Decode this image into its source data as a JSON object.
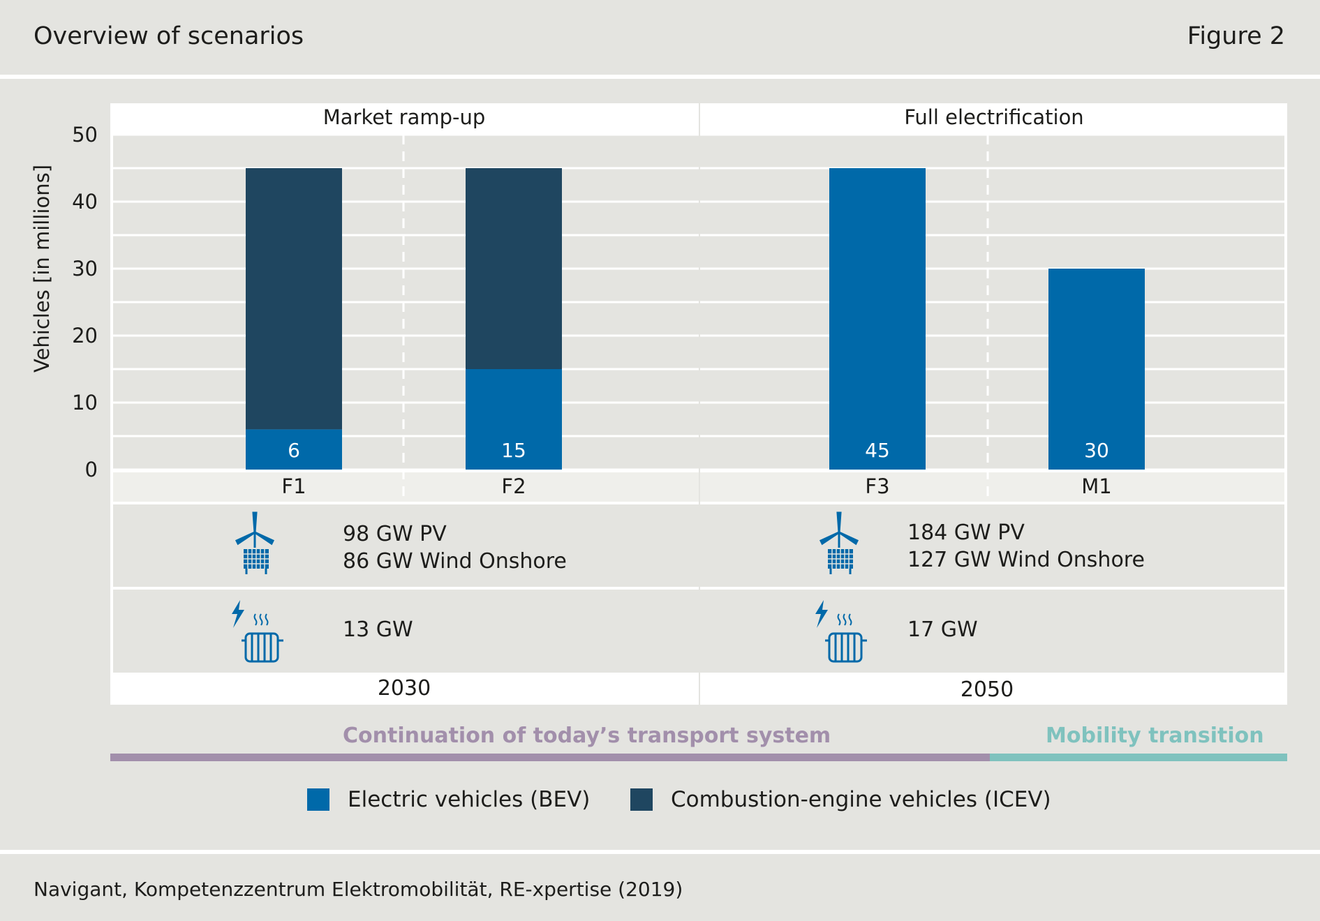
{
  "header": {
    "title": "Overview of scenarios",
    "figure": "Figure 2"
  },
  "footer": {
    "source": "Navigant, Kompetenzzentrum Elektromobilität, RE-xpertise (2019)"
  },
  "colors": {
    "bev": "#0069a9",
    "icev": "#1f4660",
    "continuation": "#a28fab",
    "transition": "#7fc2be"
  },
  "chart_data": {
    "type": "bar",
    "stacked": true,
    "ylabel": "Vehicles [in millions]",
    "ylim": [
      0,
      50
    ],
    "yticks": [
      0,
      10,
      20,
      30,
      40,
      50
    ],
    "grid": true,
    "categories": [
      "F1",
      "F2",
      "F3",
      "M1"
    ],
    "series": [
      {
        "name": "Electric vehicles (BEV)",
        "values": [
          6,
          15,
          45,
          30
        ]
      },
      {
        "name": "Combustion-engine vehicles (ICEV)",
        "values": [
          39,
          30,
          0,
          0
        ]
      }
    ],
    "data_labels": [
      "6",
      "15",
      "45",
      "30"
    ],
    "groups": [
      {
        "label": "Market ramp-up",
        "year": "2030",
        "capacity_lines": [
          "98 GW PV",
          "86 GW Wind Onshore"
        ],
        "heat_capacity": "13 GW"
      },
      {
        "label": "Full electrification",
        "year": "2050",
        "capacity_lines": [
          "184 GW PV",
          "127 GW Wind Onshore"
        ],
        "heat_capacity": "17 GW"
      }
    ],
    "legend_position": "bottom"
  },
  "bands": {
    "continuation": "Continuation of today’s transport system",
    "transition": "Mobility transition"
  },
  "icons": {
    "renewables": "wind-turbine-solar-icon",
    "heat": "power-to-heat-radiator-icon"
  }
}
